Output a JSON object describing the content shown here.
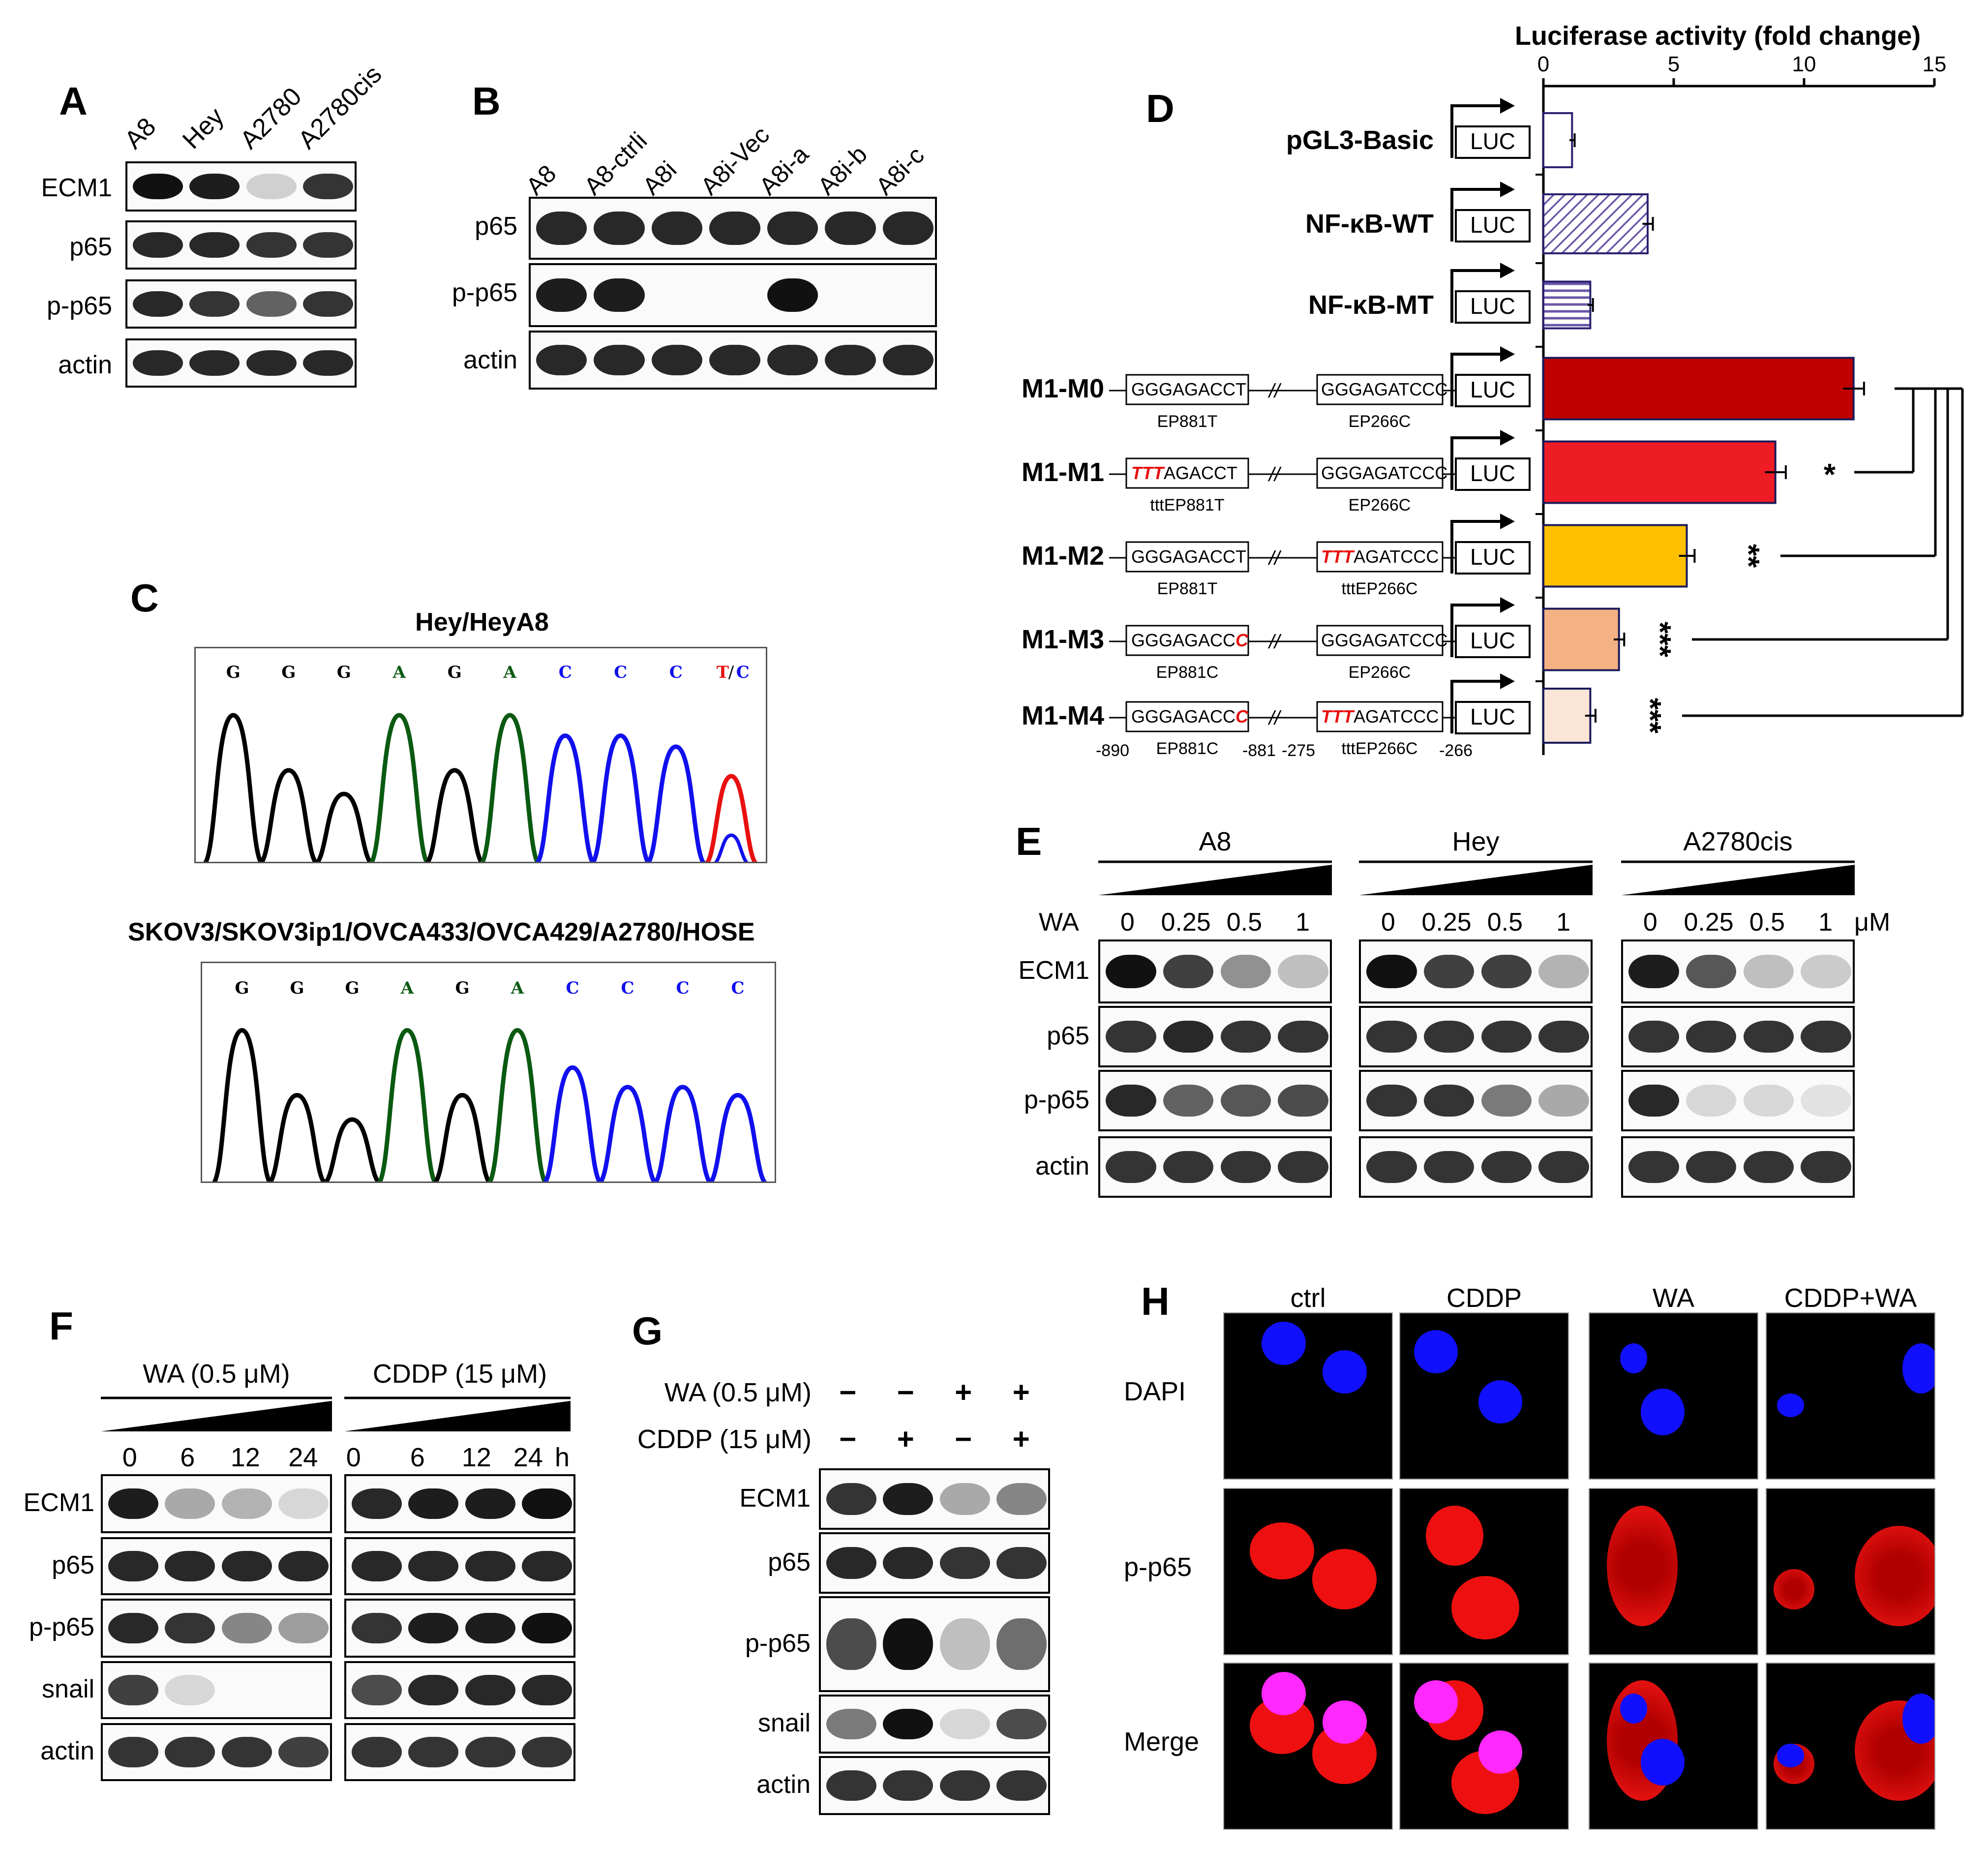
{
  "panels": {
    "A": {
      "letter": "A",
      "lanes": [
        "A8",
        "Hey",
        "A2780",
        "A2780cis"
      ],
      "rows": [
        "ECM1",
        "p65",
        "p-p65",
        "actin"
      ]
    },
    "B": {
      "letter": "B",
      "lanes": [
        "A8",
        "A8-ctrli",
        "A8i",
        "A8i-Vec",
        "A8i-a",
        "A8i-b",
        "A8i-c"
      ],
      "rows": [
        "p65",
        "p-p65",
        "actin"
      ]
    },
    "C": {
      "letter": "C",
      "top_title": "Hey/HeyA8",
      "top_bases": [
        "G",
        "G",
        "G",
        "A",
        "G",
        "A",
        "C",
        "C",
        "C",
        "T",
        "/",
        "C"
      ],
      "bottom_title": "SKOV3/SKOV3ip1/OVCA433/OVCA429/A2780/HOSE",
      "bottom_bases": [
        "G",
        "G",
        "G",
        "A",
        "G",
        "A",
        "C",
        "C",
        "C",
        "C"
      ]
    },
    "D": {
      "letter": "D",
      "axis_title": "Luciferase activity (fold change)",
      "ticks": [
        "0",
        "5",
        "10",
        "15"
      ],
      "luc": "LUC",
      "double_slash": "//",
      "pos_labels": [
        "-890",
        "-881",
        "-275",
        "-266"
      ],
      "constructs": [
        {
          "name": "pGL3-Basic"
        },
        {
          "name": "NF-κB-WT"
        },
        {
          "name": "NF-κB-MT"
        },
        {
          "name": "M1-M0",
          "box1": "GGGAGACCT",
          "lab1": "EP881T",
          "box2": "GGGAGATCCC",
          "lab2": "EP266C"
        },
        {
          "name": "M1-M1",
          "box1_red": "TTT",
          "box1": "AGACCT",
          "lab1": "tttEP881T",
          "box2": "GGGAGATCCC",
          "lab2": "EP266C"
        },
        {
          "name": "M1-M2",
          "box1": "GGGAGACCT",
          "lab1": "EP881T",
          "box2_red": "TTT",
          "box2": "AGATCCC",
          "lab2": "tttEP266C"
        },
        {
          "name": "M1-M3",
          "box1": "GGGAGACC",
          "box1_red_suffix": "C",
          "lab1": "EP881C",
          "box2": "GGGAGATCCC",
          "lab2": "EP266C"
        },
        {
          "name": "M1-M4",
          "box1": "GGGAGACC",
          "box1_red_suffix": "C",
          "lab1": "EP881C",
          "box2_red": "TTT",
          "box2": "AGATCCC",
          "lab2": "tttEP266C"
        }
      ],
      "significance": [
        "*",
        "**",
        "***",
        "***"
      ]
    },
    "E": {
      "letter": "E",
      "groups": [
        "A8",
        "Hey",
        "A2780cis"
      ],
      "treatment": "WA",
      "doses": [
        "0",
        "0.25",
        "0.5",
        "1"
      ],
      "unit": "μM",
      "rows": [
        "ECM1",
        "p65",
        "p-p65",
        "actin"
      ]
    },
    "F": {
      "letter": "F",
      "groups": [
        "WA (0.5 μM)",
        "CDDP (15 μM)"
      ],
      "times": [
        "0",
        "6",
        "12",
        "24"
      ],
      "unit": "h",
      "rows": [
        "ECM1",
        "p65",
        "p-p65",
        "snail",
        "actin"
      ]
    },
    "G": {
      "letter": "G",
      "treatments": [
        {
          "label": "WA (0.5 μM)",
          "signs": [
            "−",
            "−",
            "+",
            "+"
          ]
        },
        {
          "label": "CDDP (15 μM)",
          "signs": [
            "−",
            "+",
            "−",
            "+"
          ]
        }
      ],
      "rows": [
        "ECM1",
        "p65",
        "p-p65",
        "snail",
        "actin"
      ]
    },
    "H": {
      "letter": "H",
      "columns": [
        "ctrl",
        "CDDP",
        "WA",
        "CDDP+WA"
      ],
      "rows": [
        "DAPI",
        "p-p65",
        "Merge"
      ]
    }
  },
  "chart_data": {
    "type": "bar",
    "orientation": "horizontal",
    "categories": [
      "pGL3-Basic",
      "NF-κB-WT",
      "NF-κB-MT",
      "M1-M0",
      "M1-M1",
      "M1-M2",
      "M1-M3",
      "M1-M4"
    ],
    "values": [
      1.1,
      4.0,
      1.8,
      11.9,
      8.9,
      5.5,
      2.9,
      1.8
    ],
    "errors": [
      0.1,
      0.2,
      0.1,
      0.4,
      0.4,
      0.3,
      0.2,
      0.2
    ],
    "title": "Luciferase activity (fold change)",
    "xlim": [
      0,
      15
    ],
    "colors": [
      "#ffffff",
      "#8a78c0",
      "#8a78c0",
      "#c00000",
      "#ee1c24",
      "#ffc000",
      "#f4b183",
      "#fbe5d6"
    ],
    "patterns": [
      "none",
      "diagonal",
      "horizontal",
      "solid",
      "solid",
      "solid",
      "solid",
      "solid"
    ]
  }
}
